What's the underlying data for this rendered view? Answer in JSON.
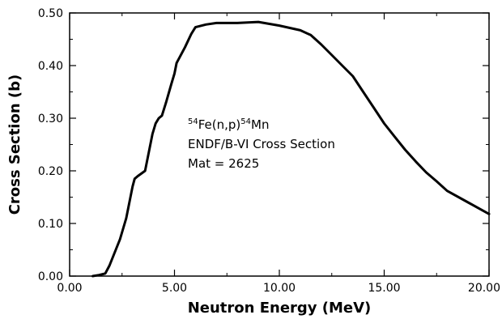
{
  "chart_data": {
    "type": "line",
    "title": "",
    "xlabel": "Neutron Energy (MeV)",
    "ylabel": "Cross Section (b)",
    "xlim": [
      0,
      20
    ],
    "ylim": [
      0,
      0.5
    ],
    "grid": false,
    "legend": "none",
    "x_tick_labels": [
      "0.00",
      "5.00",
      "10.00",
      "15.00",
      "20.00"
    ],
    "y_tick_labels": [
      "0.00",
      "0.10",
      "0.20",
      "0.30",
      "0.40",
      "0.50"
    ],
    "annotation": {
      "line1": {
        "sup1": "54",
        "base1": "Fe(n,p)",
        "sup2": "54",
        "base2": "Mn"
      },
      "line2": "ENDF/B-VI Cross Section",
      "line3": "Mat = 2625"
    },
    "series": [
      {
        "color": "#000000",
        "x": [
          1.1,
          1.4,
          1.7,
          1.9,
          2.1,
          2.4,
          2.7,
          2.9,
          3.0,
          3.1,
          3.25,
          3.6,
          3.8,
          3.95,
          4.1,
          4.25,
          4.4,
          4.6,
          4.85,
          5.0,
          5.1,
          5.5,
          5.8,
          6.0,
          6.5,
          7.0,
          8.0,
          9.0,
          10.0,
          11.0,
          11.5,
          12.0,
          12.5,
          13.0,
          13.5,
          14.0,
          14.5,
          15.0,
          15.5,
          16.0,
          16.5,
          17.0,
          17.5,
          18.0,
          19.0,
          20.0
        ],
        "y": [
          0.0,
          0.002,
          0.005,
          0.02,
          0.04,
          0.07,
          0.11,
          0.15,
          0.17,
          0.185,
          0.19,
          0.2,
          0.24,
          0.27,
          0.29,
          0.3,
          0.305,
          0.33,
          0.365,
          0.385,
          0.405,
          0.435,
          0.46,
          0.473,
          0.478,
          0.481,
          0.481,
          0.483,
          0.476,
          0.467,
          0.458,
          0.44,
          0.42,
          0.4,
          0.38,
          0.35,
          0.32,
          0.29,
          0.265,
          0.24,
          0.218,
          0.197,
          0.18,
          0.162,
          0.14,
          0.118
        ]
      }
    ]
  }
}
